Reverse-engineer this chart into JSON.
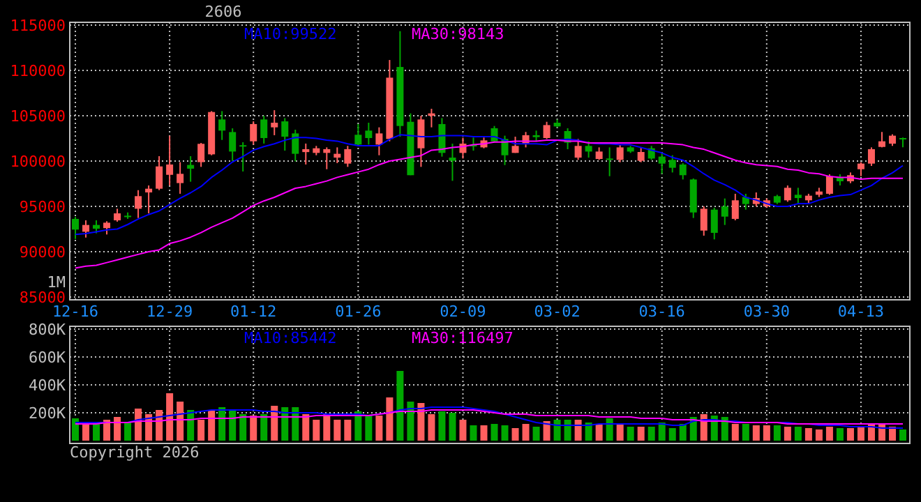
{
  "chart_data": [
    {
      "type": "candlestick",
      "title": "2606",
      "categories": [
        "12-16",
        null,
        null,
        null,
        null,
        null,
        null,
        null,
        null,
        "12-29",
        null,
        null,
        null,
        null,
        null,
        null,
        null,
        "01-12",
        null,
        null,
        null,
        null,
        null,
        null,
        null,
        null,
        null,
        "01-26",
        null,
        null,
        null,
        null,
        null,
        null,
        null,
        null,
        null,
        "02-09",
        null,
        null,
        null,
        null,
        null,
        null,
        null,
        null,
        "03-02",
        null,
        null,
        null,
        null,
        null,
        null,
        null,
        null,
        null,
        "03-16",
        null,
        null,
        null,
        null,
        null,
        null,
        null,
        null,
        null,
        "03-30",
        null,
        null,
        null,
        null,
        null,
        null,
        null,
        null,
        "04-13",
        null,
        null,
        null,
        null
      ],
      "ohlc": [
        [
          93620,
          93820,
          91410,
          92440
        ],
        [
          92200,
          93460,
          91560,
          92950
        ],
        [
          92950,
          93460,
          92030,
          92540
        ],
        [
          92600,
          93360,
          91900,
          93200
        ],
        [
          93460,
          94740,
          93310,
          94230
        ],
        [
          93970,
          94330,
          93620,
          93900
        ],
        [
          94740,
          96790,
          93720,
          96130
        ],
        [
          96540,
          97310,
          94230,
          96950
        ],
        [
          96950,
          100540,
          96790,
          99410
        ],
        [
          98480,
          102790,
          97310,
          99620
        ],
        [
          97570,
          99880,
          96390,
          98590
        ],
        [
          99570,
          100540,
          97720,
          99160
        ],
        [
          99880,
          102000,
          99360,
          101900
        ],
        [
          100740,
          105510,
          100640,
          105410
        ],
        [
          104590,
          105510,
          102330,
          103360
        ],
        [
          103200,
          103610,
          99970,
          101050
        ],
        [
          101750,
          102080,
          98850,
          101680
        ],
        [
          102180,
          104380,
          101820,
          104080
        ],
        [
          104590,
          105000,
          101930,
          102540
        ],
        [
          103720,
          105610,
          102850,
          104230
        ],
        [
          104380,
          104740,
          101150,
          102690
        ],
        [
          103050,
          103460,
          99970,
          100800
        ],
        [
          100990,
          101930,
          99620,
          101310
        ],
        [
          100900,
          101670,
          100640,
          101410
        ],
        [
          100900,
          101510,
          99100,
          101310
        ],
        [
          100380,
          101510,
          99770,
          100800
        ],
        [
          99720,
          101670,
          99360,
          101310
        ],
        [
          102900,
          104080,
          101670,
          101820
        ],
        [
          103360,
          104230,
          101820,
          102540
        ],
        [
          101820,
          103720,
          100640,
          103050
        ],
        [
          102440,
          111150,
          102180,
          109200
        ],
        [
          110380,
          114330,
          102690,
          103870
        ],
        [
          104330,
          105260,
          98440,
          98440
        ],
        [
          101410,
          105000,
          99360,
          104590
        ],
        [
          105000,
          105770,
          103720,
          105260
        ],
        [
          104080,
          104740,
          100490,
          100900
        ],
        [
          100380,
          101920,
          97820,
          100030
        ],
        [
          100900,
          102590,
          100280,
          101920
        ],
        [
          101820,
          102590,
          101150,
          101620
        ],
        [
          101510,
          102590,
          101410,
          102280
        ],
        [
          103620,
          103870,
          102030,
          102180
        ],
        [
          102440,
          102800,
          99560,
          100640
        ],
        [
          100900,
          102690,
          100900,
          101670
        ],
        [
          101920,
          103210,
          101510,
          102850
        ],
        [
          102850,
          103360,
          102180,
          102640
        ],
        [
          102540,
          104330,
          102440,
          103970
        ],
        [
          104230,
          104590,
          103720,
          103820
        ],
        [
          103310,
          103620,
          101310,
          102030
        ],
        [
          100380,
          102440,
          100130,
          101670
        ],
        [
          101670,
          102180,
          100380,
          101050
        ],
        [
          100230,
          101510,
          100130,
          101050
        ],
        [
          100280,
          101510,
          98330,
          100230
        ],
        [
          100130,
          101820,
          99870,
          101510
        ],
        [
          101510,
          101670,
          100900,
          101050
        ],
        [
          100030,
          101510,
          99870,
          101000
        ],
        [
          101410,
          101670,
          100130,
          100280
        ],
        [
          100490,
          100900,
          98590,
          99720
        ],
        [
          100130,
          100640,
          98740,
          99260
        ],
        [
          99620,
          99770,
          97970,
          98440
        ],
        [
          97970,
          98080,
          93720,
          94330
        ],
        [
          92330,
          95000,
          91770,
          94740
        ],
        [
          94640,
          94850,
          91360,
          92080
        ],
        [
          95000,
          95870,
          92950,
          93870
        ],
        [
          93620,
          96390,
          93460,
          95670
        ],
        [
          96030,
          96390,
          94640,
          95260
        ],
        [
          95260,
          96540,
          95000,
          95920
        ],
        [
          95000,
          95870,
          94850,
          95670
        ],
        [
          96130,
          96280,
          95260,
          95410
        ],
        [
          95670,
          97310,
          95510,
          97050
        ],
        [
          96280,
          97050,
          95260,
          95920
        ],
        [
          95670,
          96390,
          95260,
          96180
        ],
        [
          96280,
          97050,
          96030,
          96640
        ],
        [
          96390,
          98540,
          96280,
          98330
        ],
        [
          98180,
          98540,
          97310,
          97770
        ],
        [
          97770,
          98740,
          97560,
          98440
        ],
        [
          99100,
          99870,
          98330,
          99720
        ],
        [
          99720,
          101510,
          99460,
          101310
        ],
        [
          101560,
          103210,
          101510,
          102180
        ],
        [
          101920,
          102950,
          101670,
          102800
        ],
        [
          102540,
          102590,
          101510,
          102440
        ]
      ],
      "colors": [
        "#00a800",
        "#ff5f5f",
        "#00a800",
        "#ff5f5f",
        "#ff5f5f",
        "#00a800",
        "#ff5f5f",
        "#ff5f5f",
        "#ff5f5f",
        "#ff5f5f",
        "#ff5f5f",
        "#00a800",
        "#ff5f5f",
        "#ff5f5f",
        "#00a800",
        "#00a800",
        "#00a800",
        "#ff5f5f",
        "#00a800",
        "#ff5f5f",
        "#00a800",
        "#00a800",
        "#ff5f5f",
        "#ff5f5f",
        "#ff5f5f",
        "#ff5f5f",
        "#ff5f5f",
        "#00a800",
        "#00a800",
        "#ff5f5f",
        "#ff5f5f",
        "#00a800",
        "#00a800",
        "#ff5f5f",
        "#ff5f5f",
        "#00a800",
        "#00a800",
        "#ff5f5f",
        "#00a800",
        "#ff5f5f",
        "#00a800",
        "#00a800",
        "#ff5f5f",
        "#ff5f5f",
        "#00a800",
        "#ff5f5f",
        "#00a800",
        "#00a800",
        "#ff5f5f",
        "#00a800",
        "#ff5f5f",
        "#00a800",
        "#ff5f5f",
        "#00a800",
        "#ff5f5f",
        "#00a800",
        "#00a800",
        "#00a800",
        "#00a800",
        "#00a800",
        "#ff5f5f",
        "#00a800",
        "#00a800",
        "#ff5f5f",
        "#00a800",
        "#ff5f5f",
        "#ff5f5f",
        "#00a800",
        "#ff5f5f",
        "#00a800",
        "#ff5f5f",
        "#ff5f5f",
        "#ff5f5f",
        "#00a800",
        "#ff5f5f",
        "#ff5f5f",
        "#ff5f5f",
        "#ff5f5f",
        "#ff5f5f",
        "#00a800"
      ],
      "series": [
        {
          "type": "line",
          "name": "MA10:99522",
          "color": "#0000ff",
          "values": [
            91900,
            92000,
            92200,
            92400,
            92500,
            93000,
            93600,
            94100,
            94500,
            95200,
            95900,
            96500,
            97200,
            98200,
            99000,
            99900,
            100500,
            101200,
            101600,
            101900,
            102300,
            102600,
            102600,
            102500,
            102300,
            102200,
            101900,
            101700,
            101700,
            101700,
            102400,
            102900,
            102800,
            102700,
            102700,
            102800,
            102800,
            102800,
            102700,
            102700,
            102700,
            102300,
            101900,
            101900,
            101900,
            101800,
            102300,
            102400,
            102300,
            102000,
            101900,
            101900,
            101800,
            101800,
            101500,
            101200,
            100900,
            100400,
            100100,
            99400,
            98600,
            97900,
            97400,
            96800,
            96000,
            95700,
            95300,
            95000,
            95000,
            95300,
            95300,
            95700,
            96000,
            96200,
            96300,
            96800,
            97300,
            98100,
            98700,
            99500
          ]
        },
        {
          "type": "line",
          "name": "MA30:98143",
          "color": "#ff00ff",
          "values": [
            88200,
            88400,
            88500,
            88800,
            89100,
            89400,
            89700,
            90000,
            90200,
            90900,
            91200,
            91600,
            92100,
            92700,
            93200,
            93700,
            94400,
            95100,
            95600,
            96000,
            96500,
            97000,
            97200,
            97500,
            97800,
            98200,
            98500,
            98800,
            99100,
            99600,
            100000,
            100200,
            100400,
            100600,
            101200,
            101300,
            101500,
            101600,
            101800,
            101900,
            102100,
            102100,
            102200,
            102200,
            102200,
            102300,
            102300,
            102200,
            102200,
            102000,
            102000,
            102000,
            102000,
            102000,
            102000,
            102000,
            102000,
            101900,
            101800,
            101500,
            101300,
            100900,
            100500,
            100100,
            99800,
            99600,
            99500,
            99400,
            99100,
            99000,
            98700,
            98600,
            98300,
            98200,
            98200,
            98000,
            98100,
            98100,
            98100,
            98100
          ]
        }
      ],
      "ylim": [
        85000,
        115000
      ],
      "yticks": [
        85000,
        90000,
        95000,
        100000,
        105000,
        110000,
        115000
      ],
      "grid": true,
      "legend": "top",
      "annotations": [
        "1M"
      ]
    },
    {
      "type": "bar",
      "categories": [
        null,
        null,
        null,
        null,
        null,
        null,
        null,
        null,
        null,
        null,
        null,
        null,
        null,
        null,
        null,
        null,
        null,
        null,
        null,
        null,
        null,
        null,
        null,
        null,
        null,
        null,
        null,
        null,
        null,
        null,
        null,
        null,
        null,
        null,
        null,
        null,
        null,
        null,
        null,
        null,
        null,
        null,
        null,
        null,
        null,
        null,
        null,
        null,
        null,
        null,
        null,
        null,
        null,
        null,
        null,
        null,
        null,
        null,
        null,
        null,
        null,
        null,
        null,
        null,
        null,
        null,
        null,
        null,
        null,
        null,
        null,
        null,
        null,
        null,
        null,
        null,
        null,
        null,
        null,
        null
      ],
      "values": [
        160000,
        130000,
        130000,
        150000,
        170000,
        130000,
        230000,
        190000,
        220000,
        340000,
        280000,
        220000,
        150000,
        220000,
        240000,
        220000,
        190000,
        180000,
        190000,
        250000,
        240000,
        240000,
        190000,
        150000,
        190000,
        150000,
        150000,
        210000,
        180000,
        180000,
        310000,
        500000,
        280000,
        270000,
        190000,
        210000,
        200000,
        150000,
        110000,
        110000,
        120000,
        110000,
        90000,
        120000,
        100000,
        140000,
        150000,
        150000,
        150000,
        130000,
        120000,
        160000,
        120000,
        100000,
        100000,
        100000,
        130000,
        90000,
        120000,
        170000,
        190000,
        180000,
        170000,
        120000,
        120000,
        110000,
        110000,
        110000,
        100000,
        100000,
        90000,
        80000,
        100000,
        90000,
        90000,
        100000,
        120000,
        120000,
        100000,
        80000
      ],
      "colors": [
        "#00a800",
        "#ff5f5f",
        "#00a800",
        "#ff5f5f",
        "#ff5f5f",
        "#00a800",
        "#ff5f5f",
        "#ff5f5f",
        "#ff5f5f",
        "#ff5f5f",
        "#ff5f5f",
        "#00a800",
        "#ff5f5f",
        "#ff5f5f",
        "#00a800",
        "#00a800",
        "#00a800",
        "#ff5f5f",
        "#00a800",
        "#ff5f5f",
        "#00a800",
        "#00a800",
        "#ff5f5f",
        "#ff5f5f",
        "#ff5f5f",
        "#ff5f5f",
        "#ff5f5f",
        "#00a800",
        "#00a800",
        "#ff5f5f",
        "#ff5f5f",
        "#00a800",
        "#00a800",
        "#ff5f5f",
        "#ff5f5f",
        "#00a800",
        "#00a800",
        "#ff5f5f",
        "#00a800",
        "#ff5f5f",
        "#00a800",
        "#00a800",
        "#ff5f5f",
        "#ff5f5f",
        "#00a800",
        "#ff5f5f",
        "#00a800",
        "#00a800",
        "#ff5f5f",
        "#00a800",
        "#ff5f5f",
        "#00a800",
        "#ff5f5f",
        "#00a800",
        "#ff5f5f",
        "#00a800",
        "#00a800",
        "#00a800",
        "#00a800",
        "#00a800",
        "#ff5f5f",
        "#00a800",
        "#00a800",
        "#ff5f5f",
        "#00a800",
        "#ff5f5f",
        "#ff5f5f",
        "#00a800",
        "#ff5f5f",
        "#00a800",
        "#ff5f5f",
        "#ff5f5f",
        "#ff5f5f",
        "#00a800",
        "#ff5f5f",
        "#ff5f5f",
        "#ff5f5f",
        "#ff5f5f",
        "#ff5f5f",
        "#00a800"
      ],
      "series": [
        {
          "type": "line",
          "name": "MA10:85442",
          "color": "#0000ff",
          "values": [
            130000,
            130000,
            130000,
            130000,
            130000,
            130000,
            150000,
            160000,
            170000,
            180000,
            190000,
            200000,
            210000,
            220000,
            220000,
            220000,
            220000,
            220000,
            210000,
            210000,
            200000,
            200000,
            200000,
            200000,
            190000,
            190000,
            190000,
            190000,
            180000,
            190000,
            200000,
            220000,
            230000,
            230000,
            240000,
            240000,
            240000,
            240000,
            230000,
            220000,
            210000,
            190000,
            170000,
            150000,
            130000,
            120000,
            110000,
            110000,
            110000,
            110000,
            120000,
            120000,
            120000,
            120000,
            120000,
            120000,
            120000,
            110000,
            110000,
            140000,
            150000,
            150000,
            140000,
            140000,
            130000,
            130000,
            130000,
            130000,
            130000,
            120000,
            120000,
            110000,
            110000,
            110000,
            100000,
            100000,
            100000,
            90000,
            90000,
            90000
          ]
        },
        {
          "type": "line",
          "name": "MA30:116497",
          "color": "#ff00ff",
          "values": [
            120000,
            120000,
            120000,
            130000,
            130000,
            130000,
            140000,
            140000,
            140000,
            150000,
            150000,
            150000,
            160000,
            160000,
            160000,
            160000,
            170000,
            170000,
            170000,
            170000,
            170000,
            170000,
            170000,
            180000,
            180000,
            180000,
            180000,
            180000,
            180000,
            190000,
            200000,
            210000,
            210000,
            210000,
            220000,
            220000,
            220000,
            220000,
            220000,
            210000,
            200000,
            190000,
            190000,
            190000,
            180000,
            180000,
            180000,
            180000,
            180000,
            180000,
            170000,
            170000,
            170000,
            170000,
            160000,
            160000,
            160000,
            150000,
            150000,
            150000,
            140000,
            140000,
            140000,
            130000,
            130000,
            130000,
            130000,
            130000,
            120000,
            120000,
            120000,
            120000,
            120000,
            120000,
            120000,
            120000,
            120000,
            120000,
            120000,
            120000
          ]
        }
      ],
      "ylim": [
        0,
        800000
      ],
      "yticks": [
        {
          "value": 200000,
          "label": "200K"
        },
        {
          "value": 400000,
          "label": "400K"
        },
        {
          "value": 600000,
          "label": "600K"
        },
        {
          "value": 800000,
          "label": "800K"
        }
      ],
      "grid": true,
      "legend": "top",
      "tick_labels": "y",
      "annotations": [
        "Copyright 2026"
      ]
    }
  ]
}
